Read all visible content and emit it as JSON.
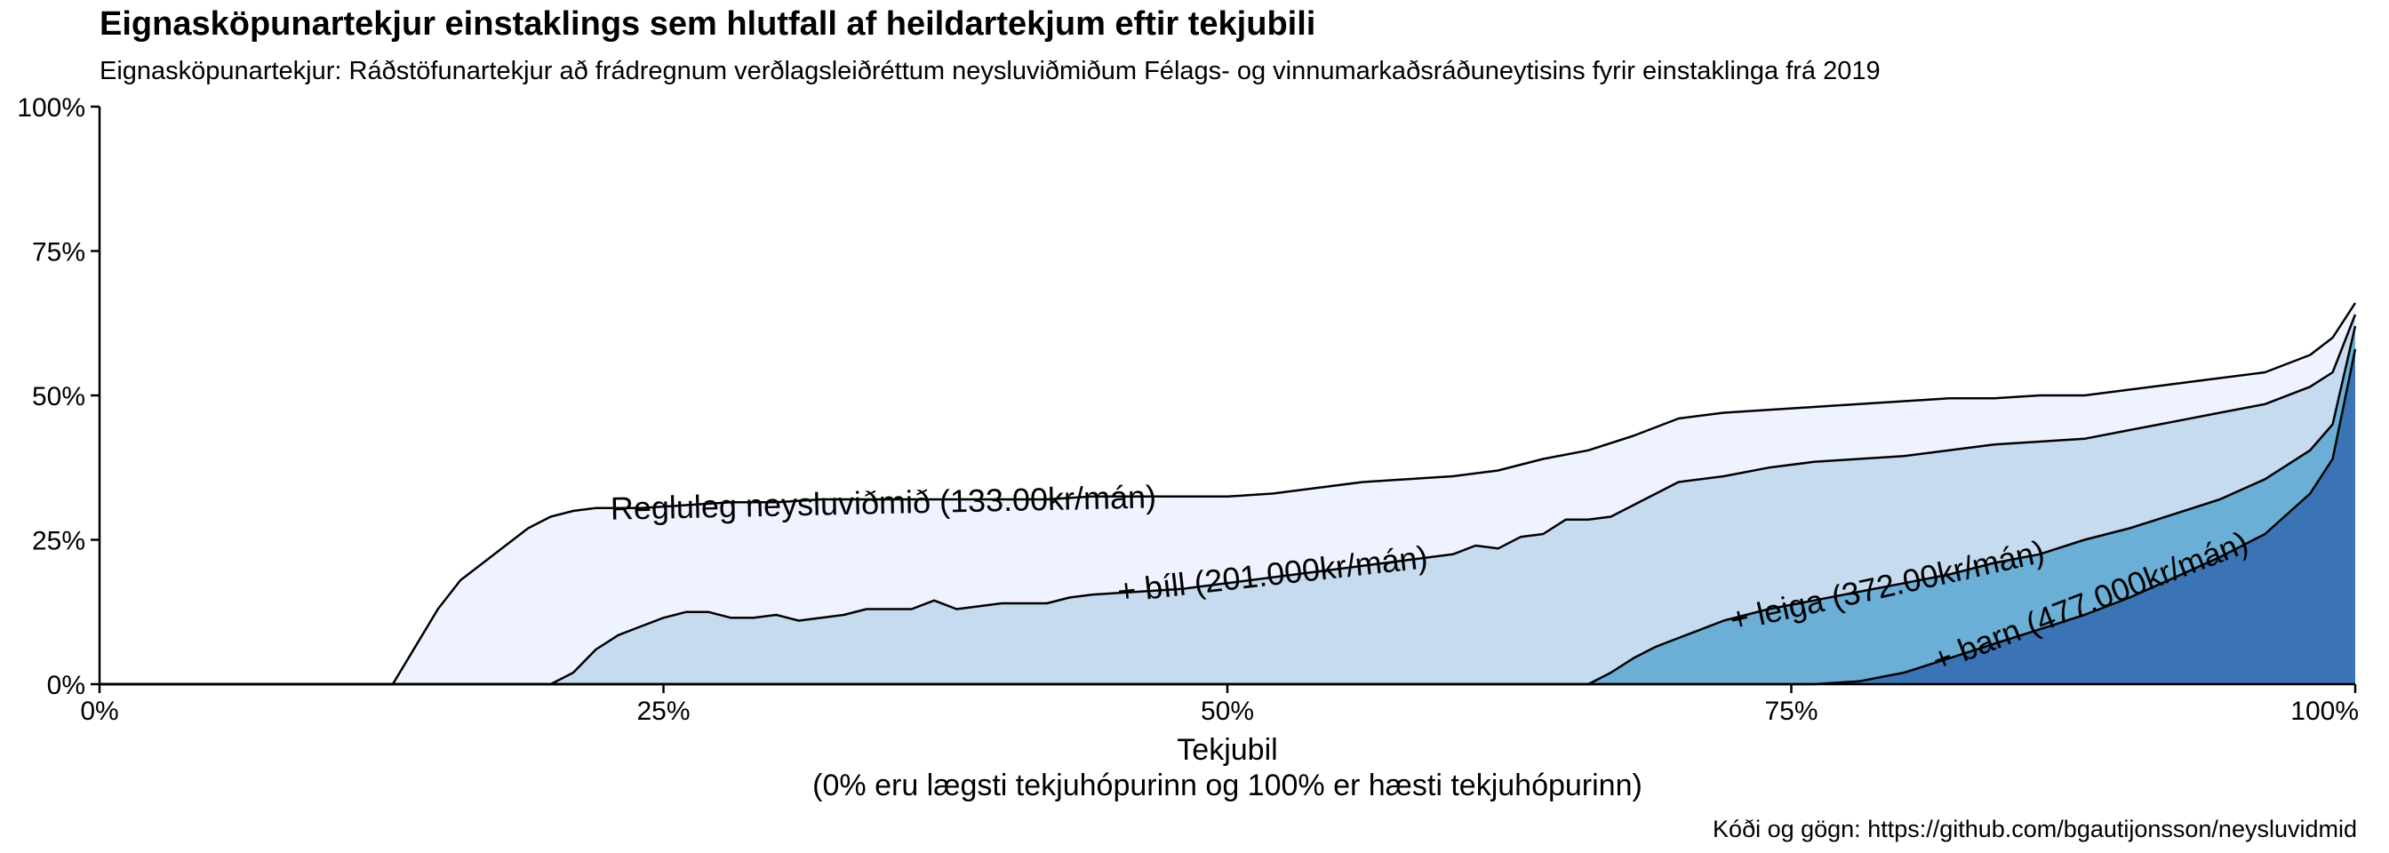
{
  "title": "Eignasköpunartekjur einstaklings sem hlutfall af heildartekjum eftir tekjubili",
  "subtitle": "Eignasköpunartekjur: Ráðstöfunartekjur að frádregnum verðlagsleiðréttum neysluviðmiðum Félags- og vinnumarkaðsráðuneytisins fyrir einstaklinga frá 2019",
  "caption": "Kóði og gögn: https://github.com/bgautijonsson/neysluvidmid",
  "chart_data": {
    "type": "area",
    "xlabel": "Tekjubil",
    "xlabel_sub": "(0% eru lægsti tekjuhópurinn og 100% er hæsti tekjuhópurinn)",
    "xlim": [
      0,
      100
    ],
    "ylim": [
      0,
      100
    ],
    "x_ticks": [
      0,
      25,
      50,
      75,
      100
    ],
    "x_tick_labels": [
      "0%",
      "25%",
      "50%",
      "75%",
      "100%"
    ],
    "y_ticks": [
      0,
      25,
      50,
      75,
      100
    ],
    "y_tick_labels": [
      "0%",
      "25%",
      "50%",
      "75%",
      "100%"
    ],
    "grid": false,
    "legend": "inline labels",
    "series": [
      {
        "name": "Regluleg neysluviðmið (133.00kr/mán)",
        "color": "#eff3ff",
        "x": [
          0,
          13,
          14,
          15,
          16,
          17,
          18,
          19,
          20,
          21,
          22,
          24,
          26,
          28,
          30,
          32,
          34,
          36,
          38,
          40,
          42,
          44,
          46,
          48,
          50,
          52,
          54,
          56,
          58,
          60,
          62,
          64,
          66,
          68,
          70,
          72,
          74,
          76,
          78,
          80,
          82,
          84,
          86,
          88,
          90,
          92,
          94,
          96,
          98,
          99,
          100
        ],
        "values": [
          0,
          0,
          6.5,
          13,
          18,
          21,
          24,
          27,
          29,
          30,
          30.5,
          30.5,
          31,
          31.5,
          31.5,
          32,
          32,
          32,
          32,
          32,
          32,
          32.5,
          32.5,
          32.5,
          32.5,
          33,
          34,
          35,
          35.5,
          36,
          37,
          39,
          40.5,
          43,
          46,
          47,
          47.5,
          48,
          48.5,
          49,
          49.5,
          49.5,
          50,
          50,
          51,
          52,
          53,
          54,
          57,
          60,
          66
        ]
      },
      {
        "name": "+ bíll (201.000kr/mán)",
        "color": "#c6dbef",
        "x": [
          0,
          20,
          21,
          22,
          23,
          24,
          25,
          26,
          27,
          28,
          29,
          30,
          31,
          32,
          33,
          34,
          35,
          36,
          37,
          38,
          39,
          40,
          41,
          42,
          43,
          44,
          46,
          48,
          50,
          52,
          54,
          56,
          58,
          60,
          61,
          62,
          63,
          64,
          65,
          66,
          67,
          68,
          69,
          70,
          72,
          74,
          76,
          78,
          80,
          82,
          84,
          86,
          88,
          90,
          92,
          94,
          96,
          98,
          99,
          100
        ],
        "values": [
          0,
          0,
          2,
          6,
          8.5,
          10,
          11.5,
          12.5,
          12.5,
          11.5,
          11.5,
          12,
          11,
          11.5,
          12,
          13,
          13,
          13,
          14.5,
          13,
          13.5,
          14,
          14,
          14,
          15,
          15.5,
          16,
          16.5,
          17.5,
          18.5,
          19.5,
          20.5,
          21.5,
          22.5,
          24,
          23.5,
          25.5,
          26,
          28.5,
          28.5,
          29,
          31,
          33,
          35,
          36,
          37.5,
          38.5,
          39,
          39.5,
          40.5,
          41.5,
          42,
          42.5,
          44,
          45.5,
          47,
          48.5,
          51.5,
          54,
          64
        ]
      },
      {
        "name": "+ leiga (372.00kr/mán)",
        "color": "#6baed6",
        "x": [
          0,
          66,
          67,
          68,
          69,
          70,
          71,
          72,
          73,
          74,
          76,
          78,
          80,
          82,
          84,
          86,
          88,
          90,
          92,
          94,
          96,
          98,
          99,
          100
        ],
        "values": [
          0,
          0,
          2,
          4.5,
          6.5,
          8,
          9.5,
          11,
          12,
          13,
          14.5,
          16,
          17.5,
          19,
          21,
          22.5,
          25,
          27,
          29.5,
          32,
          35.5,
          40.5,
          45,
          62
        ]
      },
      {
        "name": "+ barn (477.000kr/mán)",
        "color": "#3a74b4",
        "x": [
          0,
          76,
          78,
          80,
          82,
          84,
          86,
          88,
          90,
          92,
          94,
          96,
          98,
          99,
          100
        ],
        "values": [
          0,
          0,
          0.5,
          2,
          4.5,
          7,
          9.5,
          12,
          15,
          18.5,
          22,
          26,
          33,
          39,
          58
        ]
      }
    ],
    "annotations": [
      {
        "series": 0,
        "text": "Regluleg neysluviðmið (133.00kr/mán)"
      },
      {
        "series": 1,
        "text": "+ bíll (201.000kr/mán)"
      },
      {
        "series": 2,
        "text": "+ leiga (372.00kr/mán)"
      },
      {
        "series": 3,
        "text": "+ barn (477.000kr/mán)"
      }
    ]
  }
}
